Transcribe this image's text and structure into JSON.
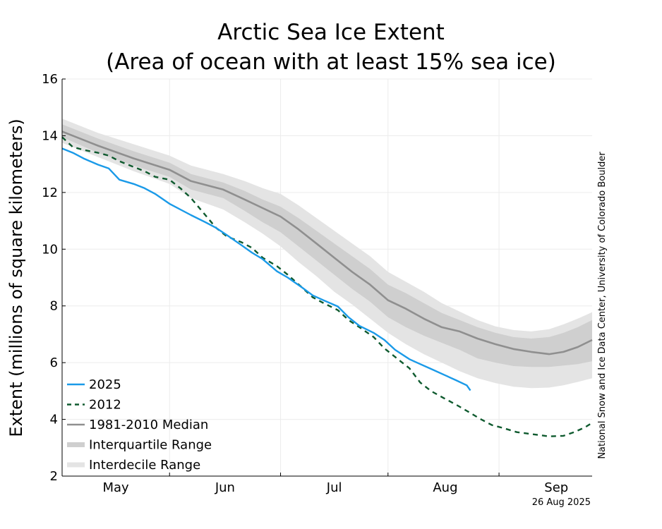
{
  "chart_data": {
    "type": "line",
    "title_line1": "Arctic Sea Ice Extent",
    "title_line2": "(Area of ocean with at least 15% sea ice)",
    "ylabel": "Extent (millions of square kilometers)",
    "ylim": [
      2,
      16
    ],
    "yticks": [
      "2",
      "4",
      "6",
      "8",
      "10",
      "12",
      "14",
      "16"
    ],
    "xlim": [
      0,
      148
    ],
    "x_month_labels": [
      {
        "label": "May",
        "center": 15
      },
      {
        "label": "Jun",
        "center": 45.5
      },
      {
        "label": "Jul",
        "center": 76
      },
      {
        "label": "Aug",
        "center": 107
      },
      {
        "label": "Sep",
        "center": 138
      }
    ],
    "x_month_boundaries": [
      0,
      30,
      61,
      91,
      122
    ],
    "grid": true,
    "legend_position": "bottom-left",
    "credit": "National Snow and Ice Data Center, University of Colorado Boulder",
    "date_label": "26 Aug 2025",
    "colors": {
      "s2025": "#1a9ae8",
      "s2012": "#0e5a2e",
      "median": "#8f8f8f",
      "interquartile": "#cfcfcf",
      "interdecile": "#e4e4e4"
    },
    "series": [
      {
        "name": "2025",
        "style": "solid",
        "x": [
          0,
          3,
          6,
          10,
          13,
          16,
          20,
          23,
          26,
          30,
          33,
          36,
          40,
          43,
          46,
          50,
          53,
          56,
          60,
          63,
          67,
          70,
          73,
          77,
          80,
          83,
          87,
          90,
          93,
          97,
          100,
          103,
          107,
          110,
          113,
          114
        ],
        "y": [
          13.55,
          13.4,
          13.2,
          12.98,
          12.85,
          12.45,
          12.3,
          12.15,
          11.95,
          11.6,
          11.4,
          11.2,
          10.95,
          10.75,
          10.5,
          10.15,
          9.88,
          9.65,
          9.22,
          9.0,
          8.65,
          8.37,
          8.2,
          7.98,
          7.6,
          7.3,
          7.05,
          6.8,
          6.45,
          6.12,
          5.95,
          5.78,
          5.55,
          5.38,
          5.2,
          5.02
        ]
      },
      {
        "name": "2012",
        "style": "dashed",
        "x": [
          0,
          3,
          6,
          10,
          13,
          16,
          20,
          23,
          26,
          30,
          33,
          36,
          40,
          43,
          46,
          50,
          53,
          56,
          60,
          63,
          67,
          70,
          73,
          77,
          80,
          83,
          87,
          90,
          93,
          97,
          100,
          103,
          107,
          110,
          113,
          117,
          120,
          123,
          127,
          130,
          133,
          136,
          140,
          143,
          146,
          148
        ],
        "y": [
          13.95,
          13.6,
          13.5,
          13.4,
          13.3,
          13.1,
          12.9,
          12.75,
          12.55,
          12.45,
          12.15,
          11.8,
          11.2,
          10.75,
          10.45,
          10.25,
          10.05,
          9.7,
          9.4,
          9.1,
          8.65,
          8.3,
          8.1,
          7.85,
          7.5,
          7.25,
          6.9,
          6.5,
          6.2,
          5.8,
          5.3,
          5.0,
          4.72,
          4.52,
          4.3,
          4.0,
          3.8,
          3.7,
          3.55,
          3.5,
          3.45,
          3.4,
          3.42,
          3.55,
          3.72,
          3.88
        ]
      },
      {
        "name": "1981-2010 Median",
        "style": "solid-thick",
        "x": [
          0,
          10,
          20,
          30,
          36,
          45,
          51,
          56,
          61,
          66,
          71,
          76,
          81,
          86,
          91,
          96,
          101,
          106,
          111,
          116,
          121,
          126,
          131,
          136,
          140,
          144,
          148
        ],
        "y": [
          14.15,
          13.65,
          13.2,
          12.8,
          12.4,
          12.1,
          11.75,
          11.45,
          11.15,
          10.7,
          10.2,
          9.7,
          9.2,
          8.75,
          8.2,
          7.9,
          7.55,
          7.25,
          7.1,
          6.85,
          6.65,
          6.48,
          6.38,
          6.3,
          6.38,
          6.55,
          6.8
        ]
      }
    ],
    "interquartile_band": {
      "x": [
        0,
        10,
        20,
        30,
        36,
        45,
        51,
        56,
        61,
        66,
        71,
        76,
        81,
        86,
        91,
        96,
        101,
        106,
        111,
        116,
        121,
        126,
        131,
        136,
        140,
        144,
        148
      ],
      "lower": [
        13.95,
        13.4,
        12.95,
        12.55,
        12.1,
        11.8,
        11.35,
        10.95,
        10.6,
        10.1,
        9.6,
        9.1,
        8.6,
        8.15,
        7.6,
        7.25,
        6.95,
        6.7,
        6.45,
        6.15,
        6.0,
        5.88,
        5.85,
        5.85,
        5.9,
        5.95,
        6.05
      ],
      "upper": [
        14.4,
        13.9,
        13.45,
        13.05,
        12.65,
        12.35,
        12.05,
        11.75,
        11.5,
        11.1,
        10.65,
        10.2,
        9.75,
        9.3,
        8.75,
        8.45,
        8.1,
        7.75,
        7.5,
        7.25,
        7.05,
        6.9,
        6.85,
        6.9,
        7.05,
        7.25,
        7.5
      ]
    },
    "interdecile_band": {
      "x": [
        0,
        10,
        20,
        30,
        36,
        45,
        51,
        56,
        61,
        66,
        71,
        76,
        81,
        86,
        91,
        96,
        101,
        106,
        111,
        116,
        121,
        126,
        131,
        136,
        140,
        144,
        148
      ],
      "lower": [
        13.75,
        13.25,
        12.75,
        12.3,
        11.8,
        11.4,
        10.95,
        10.55,
        10.1,
        9.55,
        9.05,
        8.5,
        8.05,
        7.55,
        7.05,
        6.65,
        6.3,
        6.0,
        5.7,
        5.45,
        5.28,
        5.15,
        5.1,
        5.12,
        5.2,
        5.32,
        5.45
      ],
      "upper": [
        14.6,
        14.1,
        13.7,
        13.3,
        12.95,
        12.65,
        12.4,
        12.15,
        11.95,
        11.55,
        11.1,
        10.65,
        10.2,
        9.75,
        9.2,
        8.85,
        8.5,
        8.1,
        7.8,
        7.5,
        7.28,
        7.15,
        7.1,
        7.18,
        7.35,
        7.55,
        7.78
      ]
    },
    "legend": [
      {
        "label": "2025",
        "kind": "s2025"
      },
      {
        "label": "2012",
        "kind": "s2012"
      },
      {
        "label": "1981-2010 Median",
        "kind": "median"
      },
      {
        "label": "Interquartile Range",
        "kind": "interquartile"
      },
      {
        "label": "Interdecile Range",
        "kind": "interdecile"
      }
    ]
  }
}
